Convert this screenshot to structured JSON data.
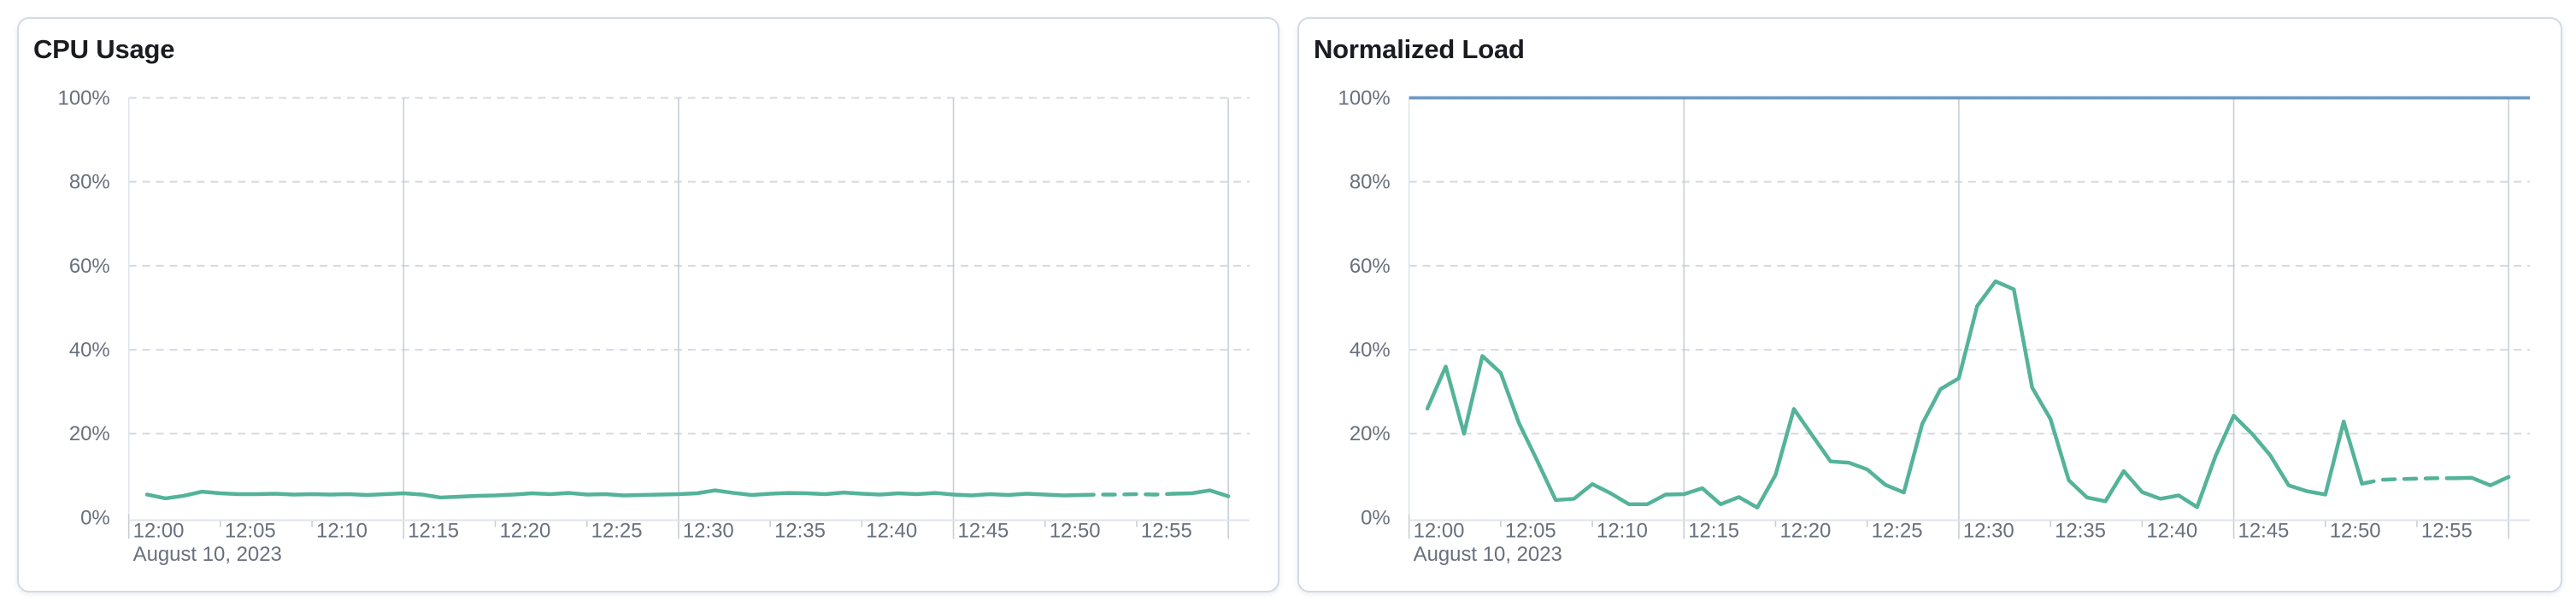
{
  "colors": {
    "series_green": "#54b399",
    "threshold_blue": "#6092c0",
    "grid_dashed": "#d4d9e2",
    "grid_solid": "#c9ced6",
    "axis_line": "#e0e4ea",
    "axis_label": "#69707d",
    "title_text": "#1a1c21",
    "panel_border": "#d3dae6",
    "panel_background": "#ffffff"
  },
  "panels": [
    {
      "title": "CPU Usage",
      "chart_data": {
        "type": "line",
        "title": "CPU Usage",
        "xlabel": "",
        "ylabel": "",
        "ylim": [
          0,
          100
        ],
        "grid": true,
        "x_range": [
          "12:00",
          "13:00"
        ],
        "x_tick_labels": [
          "12:00",
          "12:05",
          "12:10",
          "12:15",
          "12:20",
          "12:25",
          "12:30",
          "12:35",
          "12:40",
          "12:45",
          "12:50",
          "12:55"
        ],
        "x_axis_secondary_label": "August 10, 2023",
        "y_tick_labels": [
          "0%",
          "20%",
          "40%",
          "60%",
          "80%",
          "100%"
        ],
        "series": [
          {
            "name": "CPU Usage",
            "color": "#54b399",
            "unit": "%",
            "start_minute": 1,
            "step_minutes": 1,
            "values": [
              5.5,
              4.6,
              5.2,
              6.2,
              5.8,
              5.6,
              5.6,
              5.7,
              5.5,
              5.6,
              5.5,
              5.6,
              5.4,
              5.6,
              5.8,
              5.5,
              4.8,
              5.0,
              5.2,
              5.3,
              5.5,
              5.8,
              5.6,
              5.9,
              5.5,
              5.6,
              5.3,
              5.4,
              5.5,
              5.6,
              5.8,
              6.5,
              5.9,
              5.4,
              5.7,
              5.9,
              5.8,
              5.6,
              6.0,
              5.7,
              5.5,
              5.8,
              5.6,
              5.9,
              5.5,
              5.3,
              5.6,
              5.4,
              5.7,
              5.5,
              5.3,
              5.4,
              5.5,
              5.5,
              5.6,
              5.5,
              5.7,
              5.8,
              6.5,
              5.1
            ],
            "dashed_from_minute": 52,
            "dashed_to_minute": 57
          }
        ]
      }
    },
    {
      "title": "Normalized Load",
      "chart_data": {
        "type": "line",
        "title": "Normalized Load",
        "xlabel": "",
        "ylabel": "",
        "ylim": [
          0,
          100
        ],
        "grid": true,
        "x_range": [
          "12:00",
          "13:00"
        ],
        "x_tick_labels": [
          "12:00",
          "12:05",
          "12:10",
          "12:15",
          "12:20",
          "12:25",
          "12:30",
          "12:35",
          "12:40",
          "12:45",
          "12:50",
          "12:55"
        ],
        "x_axis_secondary_label": "August 10, 2023",
        "y_tick_labels": [
          "0%",
          "20%",
          "40%",
          "60%",
          "80%",
          "100%"
        ],
        "threshold_line": {
          "value": 100,
          "label": "100%",
          "color": "#6092c0"
        },
        "series": [
          {
            "name": "Normalized Load",
            "color": "#54b399",
            "unit": "%",
            "start_minute": 1,
            "step_minutes": 1,
            "values": [
              26,
              36,
              20,
              38.5,
              34.5,
              22.5,
              13.5,
              4.2,
              4.5,
              8,
              5.8,
              3.2,
              3.2,
              5.5,
              5.6,
              7,
              3.2,
              4.9,
              2.4,
              10.2,
              25.9,
              19.6,
              13.4,
              13.1,
              11.5,
              7.8,
              6,
              22.3,
              30.6,
              33.2,
              50.4,
              56.3,
              54.4,
              31,
              23.5,
              8.9,
              4.8,
              3.9,
              11.1,
              6.1,
              4.5,
              5.3,
              2.5,
              14.6,
              24.3,
              20,
              14.8,
              7.7,
              6.3,
              5.5,
              22.9,
              8.1,
              9,
              9.2,
              9.3,
              9.4,
              9.4,
              9.5,
              7.7,
              9.7
            ],
            "dashed_from_minute": 52,
            "dashed_to_minute": 57
          }
        ]
      }
    }
  ]
}
